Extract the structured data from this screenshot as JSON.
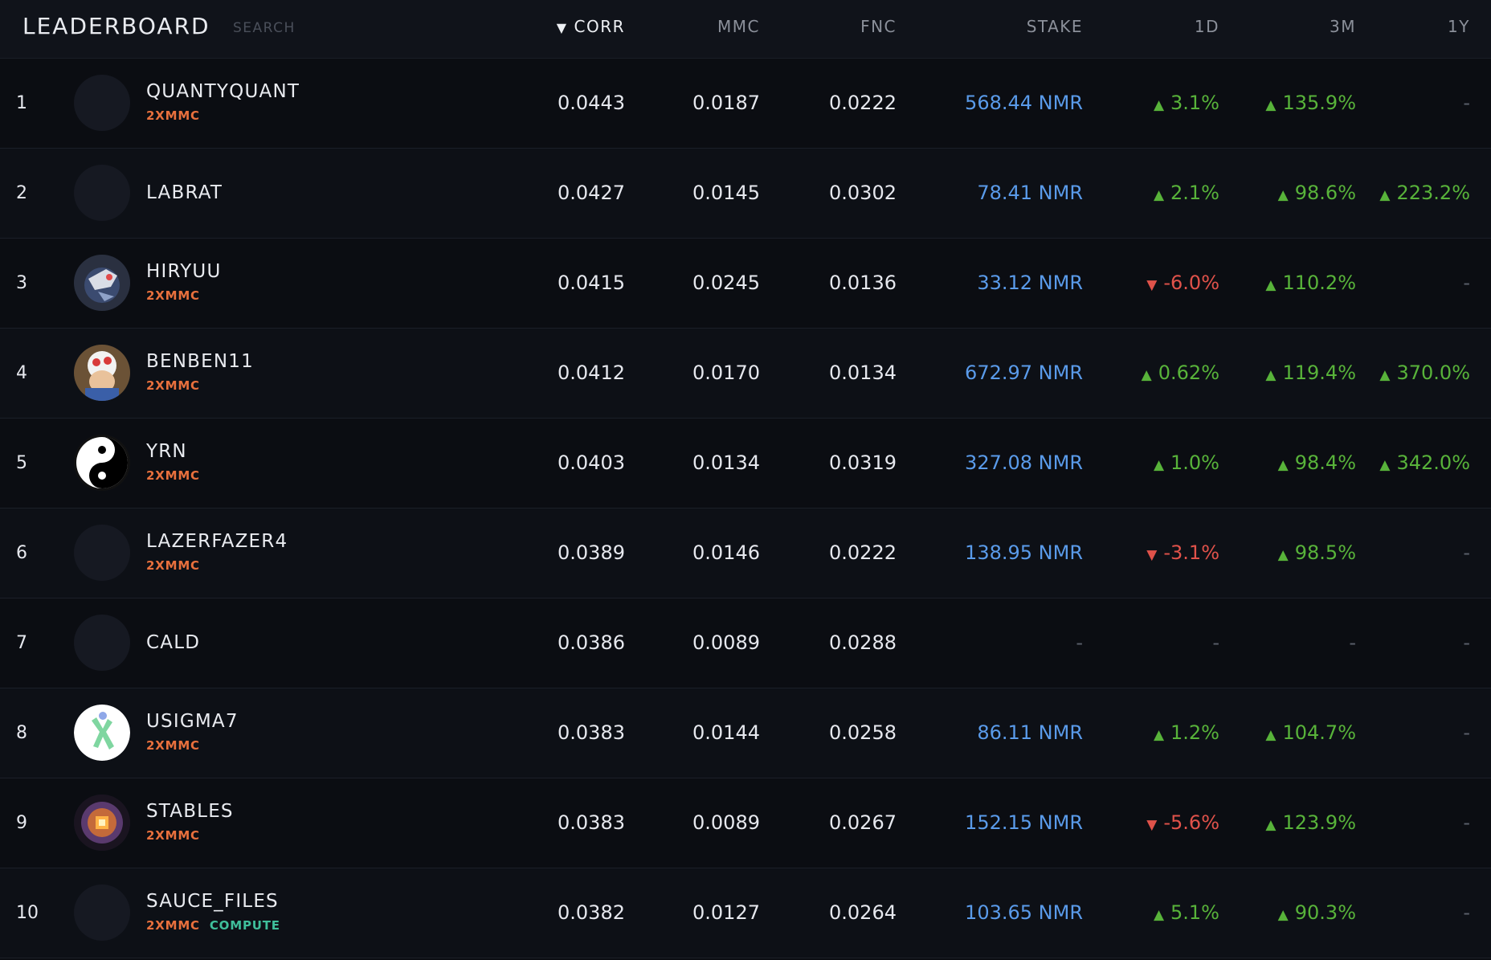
{
  "header": {
    "title": "LEADERBOARD",
    "search_placeholder": "SEARCH",
    "columns": {
      "corr": "CORR",
      "mmc": "MMC",
      "fnc": "FNC",
      "stake": "STAKE",
      "d1": "1D",
      "m3": "3M",
      "y1": "1Y"
    },
    "sort_icon": "sort-desc-triangle-icon",
    "sort_glyph": "▼"
  },
  "colors": {
    "accent_stake": "#5a9bea",
    "positive": "#58b33a",
    "negative": "#e0524a",
    "tag_mmc": "#e8703d",
    "tag_compute": "#3fbf9b"
  },
  "rows": [
    {
      "rank": "1",
      "name": "QUANTYQUANT",
      "tags": [
        "2XMMC"
      ],
      "avatar": "blank",
      "corr": "0.0443",
      "mmc": "0.0187",
      "fnc": "0.0222",
      "stake": "568.44 NMR",
      "d1": {
        "text": "3.1%",
        "dir": "up"
      },
      "m3": {
        "text": "135.9%",
        "dir": "up"
      },
      "y1": {
        "text": "-",
        "dir": "none"
      }
    },
    {
      "rank": "2",
      "name": "LABRAT",
      "tags": [],
      "avatar": "blank",
      "corr": "0.0427",
      "mmc": "0.0145",
      "fnc": "0.0302",
      "stake": "78.41 NMR",
      "d1": {
        "text": "2.1%",
        "dir": "up"
      },
      "m3": {
        "text": "98.6%",
        "dir": "up"
      },
      "y1": {
        "text": "223.2%",
        "dir": "up"
      }
    },
    {
      "rank": "3",
      "name": "HIRYUU",
      "tags": [
        "2XMMC"
      ],
      "avatar": "robot",
      "corr": "0.0415",
      "mmc": "0.0245",
      "fnc": "0.0136",
      "stake": "33.12 NMR",
      "d1": {
        "text": "-6.0%",
        "dir": "down"
      },
      "m3": {
        "text": "110.2%",
        "dir": "up"
      },
      "y1": {
        "text": "-",
        "dir": "none"
      }
    },
    {
      "rank": "4",
      "name": "BENBEN11",
      "tags": [
        "2XMMC"
      ],
      "avatar": "toad",
      "corr": "0.0412",
      "mmc": "0.0170",
      "fnc": "0.0134",
      "stake": "672.97 NMR",
      "d1": {
        "text": "0.62%",
        "dir": "up"
      },
      "m3": {
        "text": "119.4%",
        "dir": "up"
      },
      "y1": {
        "text": "370.0%",
        "dir": "up"
      }
    },
    {
      "rank": "5",
      "name": "YRN",
      "tags": [
        "2XMMC"
      ],
      "avatar": "yinyang",
      "corr": "0.0403",
      "mmc": "0.0134",
      "fnc": "0.0319",
      "stake": "327.08 NMR",
      "d1": {
        "text": "1.0%",
        "dir": "up"
      },
      "m3": {
        "text": "98.4%",
        "dir": "up"
      },
      "y1": {
        "text": "342.0%",
        "dir": "up"
      }
    },
    {
      "rank": "6",
      "name": "LAZERFAZER4",
      "tags": [
        "2XMMC"
      ],
      "avatar": "blank",
      "corr": "0.0389",
      "mmc": "0.0146",
      "fnc": "0.0222",
      "stake": "138.95 NMR",
      "d1": {
        "text": "-3.1%",
        "dir": "down"
      },
      "m3": {
        "text": "98.5%",
        "dir": "up"
      },
      "y1": {
        "text": "-",
        "dir": "none"
      }
    },
    {
      "rank": "7",
      "name": "CALD",
      "tags": [],
      "avatar": "blank",
      "corr": "0.0386",
      "mmc": "0.0089",
      "fnc": "0.0288",
      "stake": "-",
      "d1": {
        "text": "-",
        "dir": "none"
      },
      "m3": {
        "text": "-",
        "dir": "none"
      },
      "y1": {
        "text": "-",
        "dir": "none"
      }
    },
    {
      "rank": "8",
      "name": "USIGMA7",
      "tags": [
        "2XMMC"
      ],
      "avatar": "sigma",
      "corr": "0.0383",
      "mmc": "0.0144",
      "fnc": "0.0258",
      "stake": "86.11 NMR",
      "d1": {
        "text": "1.2%",
        "dir": "up"
      },
      "m3": {
        "text": "104.7%",
        "dir": "up"
      },
      "y1": {
        "text": "-",
        "dir": "none"
      }
    },
    {
      "rank": "9",
      "name": "STABLES",
      "tags": [
        "2XMMC"
      ],
      "avatar": "chip",
      "corr": "0.0383",
      "mmc": "0.0089",
      "fnc": "0.0267",
      "stake": "152.15 NMR",
      "d1": {
        "text": "-5.6%",
        "dir": "down"
      },
      "m3": {
        "text": "123.9%",
        "dir": "up"
      },
      "y1": {
        "text": "-",
        "dir": "none"
      }
    },
    {
      "rank": "10",
      "name": "SAUCE_FILES",
      "tags": [
        "2XMMC",
        "COMPUTE"
      ],
      "avatar": "blank",
      "corr": "0.0382",
      "mmc": "0.0127",
      "fnc": "0.0264",
      "stake": "103.65 NMR",
      "d1": {
        "text": "5.1%",
        "dir": "up"
      },
      "m3": {
        "text": "90.3%",
        "dir": "up"
      },
      "y1": {
        "text": "-",
        "dir": "none"
      }
    }
  ]
}
